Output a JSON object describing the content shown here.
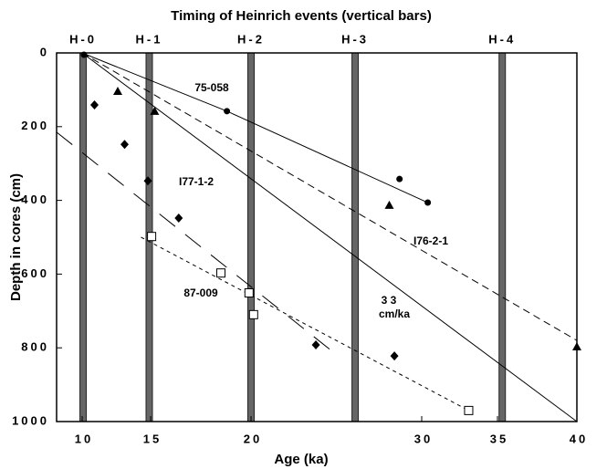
{
  "chart_data": {
    "type": "scatter",
    "title": "Timing of Heinrich events (vertical bars)",
    "xlabel": "Age (ka)",
    "ylabel": "Depth in cores (cm)",
    "xlim": [
      8.1,
      40
    ],
    "xticks": [
      10,
      15,
      20,
      30,
      35,
      40
    ],
    "ylim": [
      1000,
      0
    ],
    "yticks": [
      0,
      200,
      400,
      600,
      800,
      1000
    ],
    "events": [
      {
        "label": "H-0",
        "age": 10.07
      },
      {
        "label": "H-1",
        "age": 14.9
      },
      {
        "label": "H-2",
        "age": 20
      },
      {
        "label": "H-3",
        "age": 26.1
      },
      {
        "label": "H-4",
        "age": 35.3
      }
    ],
    "series": [
      {
        "name": "75-058",
        "marker": "circle",
        "color": "#000",
        "x": [
          10.13,
          18.8,
          28.7,
          30.4
        ],
        "values": [
          5,
          158,
          342,
          406
        ]
      },
      {
        "name": "I76-2-1",
        "marker": "triangle",
        "color": "#000",
        "x": [
          12.6,
          15.2,
          28.1,
          40
        ],
        "values": [
          104,
          158,
          413,
          797
        ]
      },
      {
        "name": "I77-1-2",
        "marker": "diamond",
        "color": "#000",
        "x": [
          10.9,
          13.1,
          14.8,
          16.4,
          23.8,
          28.4
        ],
        "values": [
          141,
          248,
          347,
          448,
          792,
          822
        ]
      },
      {
        "name": "87-009",
        "marker": "square",
        "color": "#000",
        "x": [
          15.05,
          18.5,
          19.9,
          20.15,
          33.1
        ],
        "values": [
          498,
          597,
          651,
          710,
          970
        ]
      }
    ],
    "lines": [
      {
        "dash": "none",
        "x": [
          10,
          18.8,
          30.4
        ],
        "values": [
          0,
          158,
          406
        ]
      },
      {
        "dash": "8,5",
        "x": [
          10,
          40
        ],
        "values": [
          0,
          780
        ]
      },
      {
        "dash": "none",
        "x": [
          10,
          40
        ],
        "values": [
          0,
          1000
        ]
      },
      {
        "dash": "22,14",
        "x": [
          8.1,
          25.1
        ],
        "values": [
          215,
          822
        ]
      },
      {
        "dash": "4,4",
        "x": [
          14.3,
          33.1
        ],
        "values": [
          500,
          970
        ]
      }
    ],
    "annotations": [
      "75-058",
      "I76-2-1",
      "I77-1-2",
      "87-009",
      "3 3",
      "cm/ka"
    ]
  }
}
